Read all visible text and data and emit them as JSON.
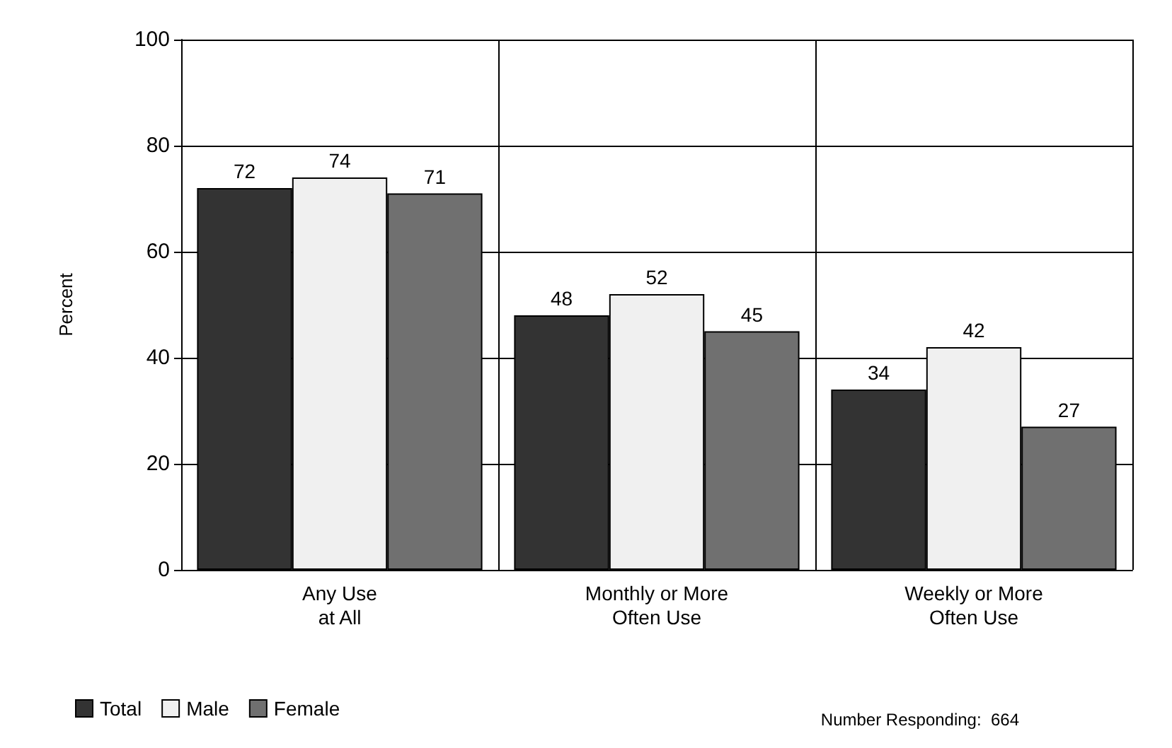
{
  "chart_data": {
    "type": "bar",
    "ylabel": "Percent",
    "categories": [
      "Any Use\nat All",
      "Monthly or More\nOften Use",
      "Weekly or More\nOften Use"
    ],
    "series": [
      {
        "name": "Total",
        "color": "#333333",
        "values": [
          72,
          48,
          34
        ]
      },
      {
        "name": "Male",
        "color": "#f0f0f0",
        "values": [
          74,
          52,
          42
        ]
      },
      {
        "name": "Female",
        "color": "#707070",
        "values": [
          71,
          45,
          27
        ]
      }
    ],
    "ylim": [
      0,
      100
    ],
    "yticks": [
      0,
      20,
      40,
      60,
      80,
      100
    ],
    "grid": true,
    "legend": "bottom left",
    "data_labels": true,
    "annotations": [
      "Number Responding:  664"
    ]
  }
}
